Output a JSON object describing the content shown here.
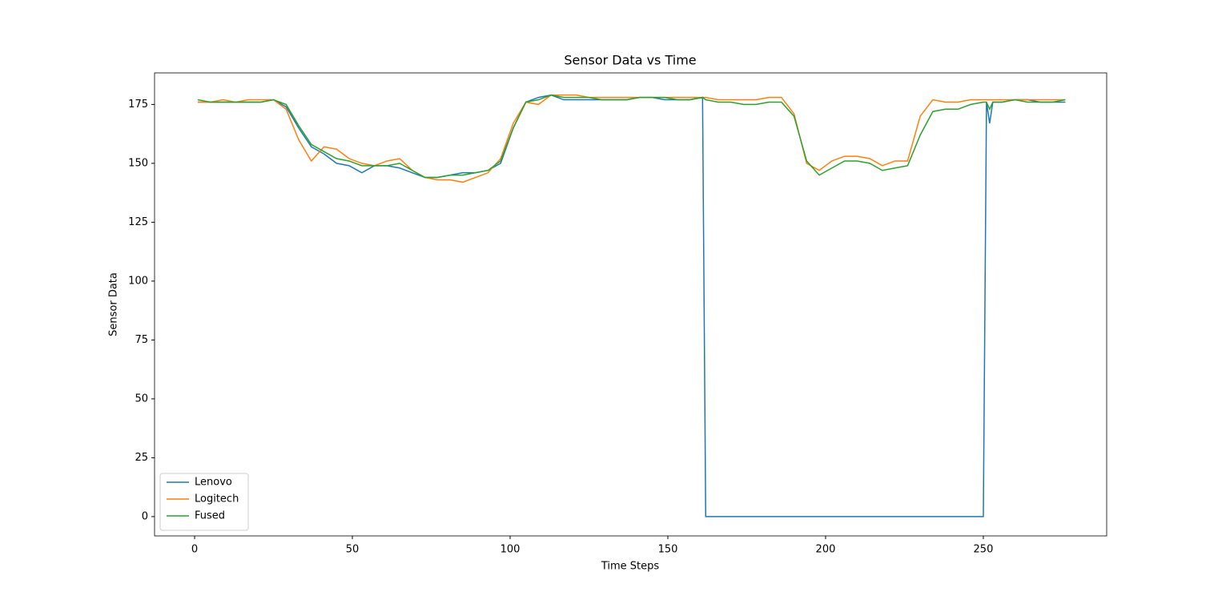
{
  "chart_data": {
    "type": "line",
    "title": "Sensor Data vs Time",
    "x_label": "Time Steps",
    "y_label": "Sensor Data",
    "x": [
      1,
      5,
      9,
      13,
      17,
      21,
      25,
      29,
      33,
      37,
      41,
      45,
      49,
      53,
      57,
      61,
      65,
      69,
      73,
      77,
      81,
      85,
      89,
      93,
      97,
      101,
      105,
      109,
      113,
      117,
      121,
      125,
      129,
      133,
      137,
      141,
      145,
      149,
      153,
      157,
      161,
      162,
      166,
      170,
      174,
      178,
      182,
      186,
      190,
      194,
      198,
      202,
      206,
      210,
      214,
      218,
      222,
      226,
      230,
      234,
      238,
      242,
      246,
      250,
      251,
      252,
      253,
      256,
      260,
      264,
      268,
      272,
      276
    ],
    "series": [
      {
        "name": "Lenovo",
        "color": "#1f77b4",
        "values": [
          176,
          176,
          176,
          176,
          176,
          176,
          177,
          174,
          165,
          157,
          154,
          150,
          149,
          146,
          149,
          149,
          148,
          146,
          144,
          144,
          145,
          146,
          146,
          147,
          150,
          165,
          176,
          178,
          179,
          177,
          177,
          177,
          177,
          177,
          177,
          178,
          178,
          177,
          177,
          177,
          178,
          0,
          0,
          0,
          0,
          0,
          0,
          0,
          0,
          0,
          0,
          0,
          0,
          0,
          0,
          0,
          0,
          0,
          0,
          0,
          0,
          0,
          0,
          0,
          176,
          167,
          176,
          176,
          177,
          177,
          176,
          176,
          176
        ]
      },
      {
        "name": "Logitech",
        "color": "#ff7f0e",
        "values": [
          176,
          176,
          177,
          176,
          177,
          177,
          177,
          173,
          160,
          151,
          157,
          156,
          152,
          150,
          149,
          151,
          152,
          147,
          144,
          143,
          143,
          142,
          144,
          146,
          152,
          167,
          176,
          175,
          179,
          179,
          179,
          178,
          178,
          178,
          178,
          178,
          178,
          178,
          178,
          178,
          178,
          178,
          177,
          177,
          177,
          177,
          178,
          178,
          171,
          150,
          147,
          151,
          153,
          153,
          152,
          149,
          151,
          151,
          170,
          177,
          176,
          176,
          177,
          177,
          177,
          177,
          177,
          177,
          177,
          177,
          177,
          177,
          177
        ]
      },
      {
        "name": "Fused",
        "color": "#2ca02c",
        "values": [
          177,
          176,
          176,
          176,
          176,
          176,
          177,
          175,
          166,
          158,
          155,
          152,
          151,
          149,
          149,
          149,
          150,
          147,
          144,
          144,
          145,
          145,
          146,
          147,
          151,
          165,
          176,
          177,
          179,
          178,
          178,
          178,
          177,
          177,
          177,
          178,
          178,
          178,
          177,
          177,
          178,
          177,
          176,
          176,
          175,
          175,
          176,
          176,
          170,
          151,
          145,
          148,
          151,
          151,
          150,
          147,
          148,
          149,
          162,
          172,
          173,
          173,
          175,
          176,
          176,
          173,
          176,
          176,
          177,
          176,
          176,
          176,
          177
        ]
      }
    ],
    "xlim": [
      -12.7,
      289.1
    ],
    "ylim": [
      -8.2,
      188.4
    ],
    "xticks": [
      0,
      50,
      100,
      150,
      200,
      250
    ],
    "yticks": [
      0,
      25,
      50,
      75,
      100,
      125,
      150,
      175
    ],
    "grid": false,
    "legend_position": "lower left"
  }
}
